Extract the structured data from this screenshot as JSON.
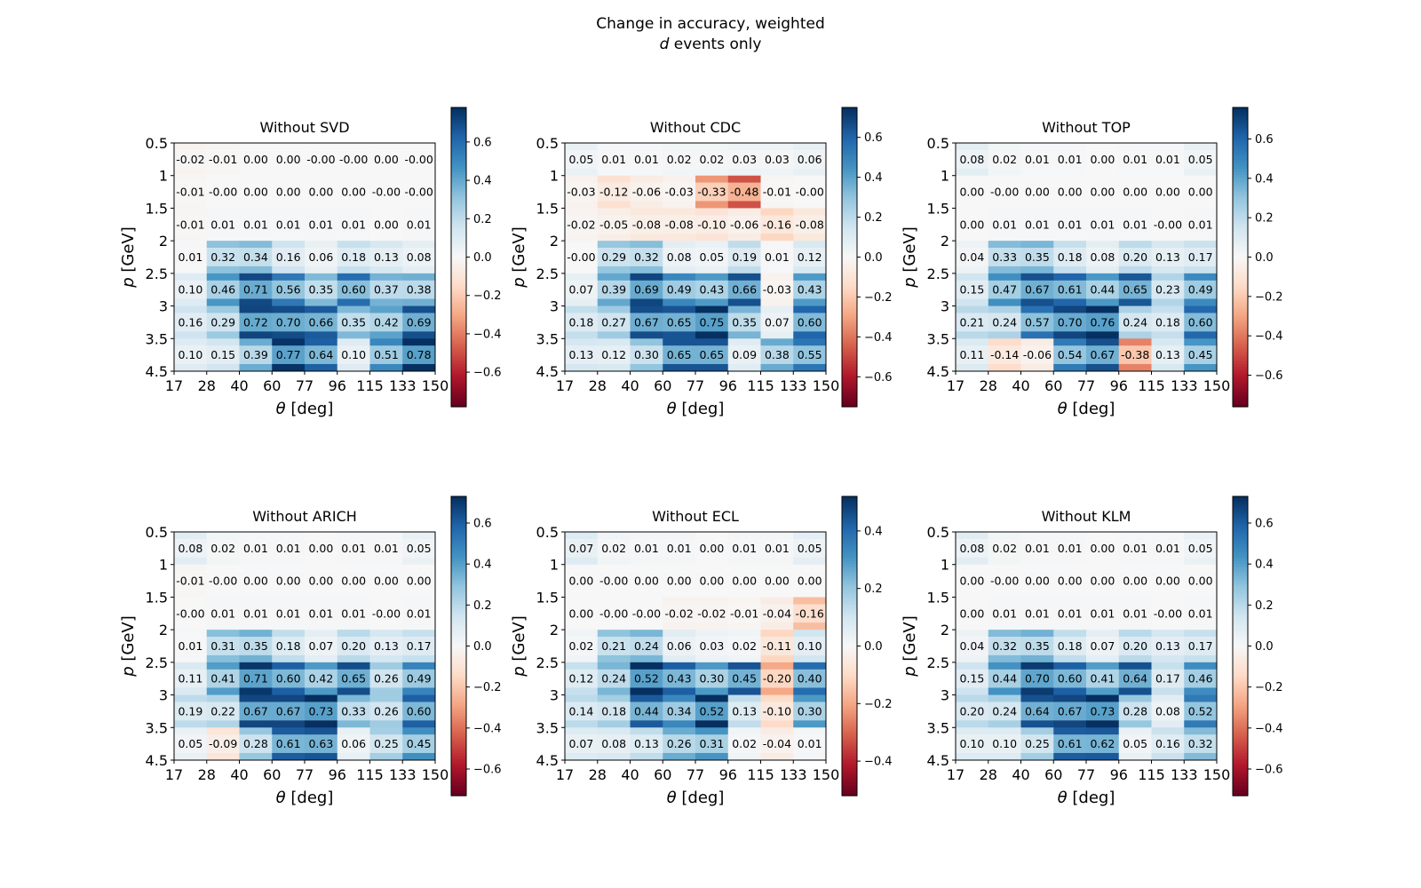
{
  "figure": {
    "title_line1": "Change in accuracy, weighted",
    "title_line2_var": "d",
    "title_line2_rest": " events only"
  },
  "colors": {
    "cmap": "RdBu",
    "stops": [
      "#67001f",
      "#b2182b",
      "#d6604d",
      "#f4a582",
      "#fddbc7",
      "#f7f7f7",
      "#d1e5f0",
      "#92c5de",
      "#4393c3",
      "#2166ac",
      "#053061"
    ]
  },
  "chart_data": [
    {
      "type": "heatmap",
      "title": "Without SVD",
      "xlabel_var": "θ",
      "xlabel_unit": " [deg]",
      "ylabel_var": "p",
      "ylabel_unit": " [GeV]",
      "x_edges": [
        "17",
        "28",
        "40",
        "60",
        "77",
        "96",
        "115",
        "133",
        "150"
      ],
      "y_edges": [
        "0.5",
        "1",
        "1.5",
        "2",
        "2.5",
        "3",
        "3.5",
        "4.5"
      ],
      "cells": [
        [
          "-0.02",
          "-0.01",
          "0.00",
          "0.00",
          "-0.00",
          "-0.00",
          "0.00",
          "-0.00"
        ],
        [
          "-0.01",
          "-0.00",
          "0.00",
          "0.00",
          "0.00",
          "0.00",
          "-0.00",
          "-0.00"
        ],
        [
          "-0.01",
          "0.01",
          "0.01",
          "0.01",
          "0.01",
          "0.01",
          "0.00",
          "0.01"
        ],
        [
          "0.01",
          "0.32",
          "0.34",
          "0.16",
          "0.06",
          "0.18",
          "0.13",
          "0.08"
        ],
        [
          "0.10",
          "0.46",
          "0.71",
          "0.56",
          "0.35",
          "0.60",
          "0.37",
          "0.38"
        ],
        [
          "0.16",
          "0.29",
          "0.72",
          "0.70",
          "0.66",
          "0.35",
          "0.42",
          "0.69"
        ],
        [
          "0.10",
          "0.15",
          "0.39",
          "0.77",
          "0.64",
          "0.10",
          "0.51",
          "0.78"
        ]
      ],
      "colorbar": {
        "vmin": -0.78,
        "vmax": 0.78,
        "ticks": [
          "0.6",
          "0.4",
          "0.2",
          "0.0",
          "−0.2",
          "−0.4",
          "−0.6"
        ]
      }
    },
    {
      "type": "heatmap",
      "title": "Without CDC",
      "xlabel_var": "θ",
      "xlabel_unit": " [deg]",
      "ylabel_var": "p",
      "ylabel_unit": " [GeV]",
      "x_edges": [
        "17",
        "28",
        "40",
        "60",
        "77",
        "96",
        "115",
        "133",
        "150"
      ],
      "y_edges": [
        "0.5",
        "1",
        "1.5",
        "2",
        "2.5",
        "3",
        "3.5",
        "4.5"
      ],
      "cells": [
        [
          "0.05",
          "0.01",
          "0.01",
          "0.02",
          "0.02",
          "0.03",
          "0.03",
          "0.06"
        ],
        [
          "-0.03",
          "-0.12",
          "-0.06",
          "-0.03",
          "-0.33",
          "-0.48",
          "-0.01",
          "-0.00"
        ],
        [
          "-0.02",
          "-0.05",
          "-0.08",
          "-0.08",
          "-0.10",
          "-0.06",
          "-0.16",
          "-0.08"
        ],
        [
          "-0.00",
          "0.29",
          "0.32",
          "0.08",
          "0.05",
          "0.19",
          "0.01",
          "0.12"
        ],
        [
          "0.07",
          "0.39",
          "0.69",
          "0.49",
          "0.43",
          "0.66",
          "-0.03",
          "0.43"
        ],
        [
          "0.18",
          "0.27",
          "0.67",
          "0.65",
          "0.75",
          "0.35",
          "0.07",
          "0.60"
        ],
        [
          "0.13",
          "0.12",
          "0.30",
          "0.65",
          "0.65",
          "0.09",
          "0.38",
          "0.55"
        ]
      ],
      "colorbar": {
        "vmin": -0.75,
        "vmax": 0.75,
        "ticks": [
          "0.6",
          "0.4",
          "0.2",
          "0.0",
          "−0.2",
          "−0.4",
          "−0.6"
        ]
      }
    },
    {
      "type": "heatmap",
      "title": "Without TOP",
      "xlabel_var": "θ",
      "xlabel_unit": " [deg]",
      "ylabel_var": "p",
      "ylabel_unit": " [GeV]",
      "x_edges": [
        "17",
        "28",
        "40",
        "60",
        "77",
        "96",
        "115",
        "133",
        "150"
      ],
      "y_edges": [
        "0.5",
        "1",
        "1.5",
        "2",
        "2.5",
        "3",
        "3.5",
        "4.5"
      ],
      "cells": [
        [
          "0.08",
          "0.02",
          "0.01",
          "0.01",
          "0.00",
          "0.01",
          "0.01",
          "0.05"
        ],
        [
          "0.00",
          "-0.00",
          "0.00",
          "0.00",
          "0.00",
          "0.00",
          "0.00",
          "0.00"
        ],
        [
          "0.00",
          "0.01",
          "0.01",
          "0.01",
          "0.01",
          "0.01",
          "-0.00",
          "0.01"
        ],
        [
          "0.04",
          "0.33",
          "0.35",
          "0.18",
          "0.08",
          "0.20",
          "0.13",
          "0.17"
        ],
        [
          "0.15",
          "0.47",
          "0.67",
          "0.61",
          "0.44",
          "0.65",
          "0.23",
          "0.49"
        ],
        [
          "0.21",
          "0.24",
          "0.57",
          "0.70",
          "0.76",
          "0.24",
          "0.18",
          "0.60"
        ],
        [
          "0.11",
          "-0.14",
          "-0.06",
          "0.54",
          "0.67",
          "-0.38",
          "0.13",
          "0.45"
        ]
      ],
      "colorbar": {
        "vmin": -0.76,
        "vmax": 0.76,
        "ticks": [
          "0.6",
          "0.4",
          "0.2",
          "0.0",
          "−0.2",
          "−0.4",
          "−0.6"
        ]
      }
    },
    {
      "type": "heatmap",
      "title": "Without ARICH",
      "xlabel_var": "θ",
      "xlabel_unit": " [deg]",
      "ylabel_var": "p",
      "ylabel_unit": " [GeV]",
      "x_edges": [
        "17",
        "28",
        "40",
        "60",
        "77",
        "96",
        "115",
        "133",
        "150"
      ],
      "y_edges": [
        "0.5",
        "1",
        "1.5",
        "2",
        "2.5",
        "3",
        "3.5",
        "4.5"
      ],
      "cells": [
        [
          "0.08",
          "0.02",
          "0.01",
          "0.01",
          "0.00",
          "0.01",
          "0.01",
          "0.05"
        ],
        [
          "-0.01",
          "-0.00",
          "0.00",
          "0.00",
          "0.00",
          "0.00",
          "0.00",
          "0.00"
        ],
        [
          "-0.00",
          "0.01",
          "0.01",
          "0.01",
          "0.01",
          "0.01",
          "-0.00",
          "0.01"
        ],
        [
          "0.01",
          "0.31",
          "0.35",
          "0.18",
          "0.07",
          "0.20",
          "0.13",
          "0.17"
        ],
        [
          "0.11",
          "0.41",
          "0.71",
          "0.60",
          "0.42",
          "0.65",
          "0.26",
          "0.49"
        ],
        [
          "0.19",
          "0.22",
          "0.67",
          "0.67",
          "0.73",
          "0.33",
          "0.26",
          "0.60"
        ],
        [
          "0.05",
          "-0.09",
          "0.28",
          "0.61",
          "0.63",
          "0.06",
          "0.25",
          "0.45"
        ]
      ],
      "colorbar": {
        "vmin": -0.73,
        "vmax": 0.73,
        "ticks": [
          "0.6",
          "0.4",
          "0.2",
          "0.0",
          "−0.2",
          "−0.4",
          "−0.6"
        ]
      }
    },
    {
      "type": "heatmap",
      "title": "Without ECL",
      "xlabel_var": "θ",
      "xlabel_unit": " [deg]",
      "ylabel_var": "p",
      "ylabel_unit": " [GeV]",
      "x_edges": [
        "17",
        "28",
        "40",
        "60",
        "77",
        "96",
        "115",
        "133",
        "150"
      ],
      "y_edges": [
        "0.5",
        "1",
        "1.5",
        "2",
        "2.5",
        "3",
        "3.5",
        "4.5"
      ],
      "cells": [
        [
          "0.07",
          "0.02",
          "0.01",
          "0.01",
          "0.00",
          "0.01",
          "0.01",
          "0.05"
        ],
        [
          "0.00",
          "-0.00",
          "0.00",
          "0.00",
          "0.00",
          "0.00",
          "0.00",
          "0.00"
        ],
        [
          "0.00",
          "-0.00",
          "-0.00",
          "-0.02",
          "-0.02",
          "-0.01",
          "-0.04",
          "-0.16"
        ],
        [
          "0.02",
          "0.21",
          "0.24",
          "0.06",
          "0.03",
          "0.02",
          "-0.11",
          "0.10"
        ],
        [
          "0.12",
          "0.24",
          "0.52",
          "0.43",
          "0.30",
          "0.45",
          "-0.20",
          "0.40"
        ],
        [
          "0.14",
          "0.18",
          "0.44",
          "0.34",
          "0.52",
          "0.13",
          "-0.10",
          "0.30"
        ],
        [
          "0.07",
          "0.08",
          "0.13",
          "0.26",
          "0.31",
          "0.02",
          "-0.04",
          "0.01"
        ]
      ],
      "colorbar": {
        "vmin": -0.52,
        "vmax": 0.52,
        "ticks": [
          "0.4",
          "0.2",
          "0.0",
          "−0.2",
          "−0.4"
        ]
      }
    },
    {
      "type": "heatmap",
      "title": "Without KLM",
      "xlabel_var": "θ",
      "xlabel_unit": " [deg]",
      "ylabel_var": "p",
      "ylabel_unit": " [GeV]",
      "x_edges": [
        "17",
        "28",
        "40",
        "60",
        "77",
        "96",
        "115",
        "133",
        "150"
      ],
      "y_edges": [
        "0.5",
        "1",
        "1.5",
        "2",
        "2.5",
        "3",
        "3.5",
        "4.5"
      ],
      "cells": [
        [
          "0.08",
          "0.02",
          "0.01",
          "0.01",
          "0.00",
          "0.01",
          "0.01",
          "0.05"
        ],
        [
          "0.00",
          "-0.00",
          "0.00",
          "0.00",
          "0.00",
          "0.00",
          "0.00",
          "0.00"
        ],
        [
          "0.00",
          "0.01",
          "0.01",
          "0.01",
          "0.01",
          "0.01",
          "-0.00",
          "0.01"
        ],
        [
          "0.04",
          "0.32",
          "0.35",
          "0.18",
          "0.07",
          "0.20",
          "0.13",
          "0.17"
        ],
        [
          "0.15",
          "0.44",
          "0.70",
          "0.60",
          "0.41",
          "0.64",
          "0.17",
          "0.46"
        ],
        [
          "0.20",
          "0.24",
          "0.64",
          "0.67",
          "0.73",
          "0.28",
          "0.08",
          "0.52"
        ],
        [
          "0.10",
          "0.10",
          "0.25",
          "0.61",
          "0.62",
          "0.05",
          "0.16",
          "0.32"
        ]
      ],
      "colorbar": {
        "vmin": -0.73,
        "vmax": 0.73,
        "ticks": [
          "0.6",
          "0.4",
          "0.2",
          "0.0",
          "−0.2",
          "−0.4",
          "−0.6"
        ]
      }
    }
  ]
}
